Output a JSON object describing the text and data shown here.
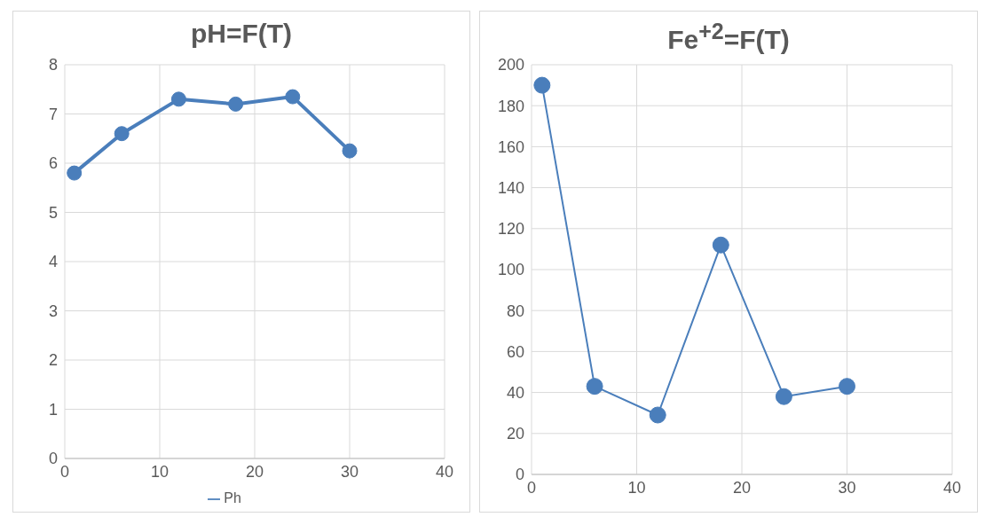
{
  "chart_data": [
    {
      "type": "line",
      "title": "pH=F(T)",
      "x": [
        1,
        6,
        12,
        18,
        24,
        30
      ],
      "series": [
        {
          "name": "Ph",
          "color": "#4a7ebb",
          "values": [
            5.8,
            6.6,
            7.3,
            7.2,
            7.35,
            6.25
          ]
        }
      ],
      "xlim": [
        0,
        40
      ],
      "xticks": [
        0,
        10,
        20,
        30,
        40
      ],
      "ylim": [
        0,
        8
      ],
      "yticks": [
        0,
        1,
        2,
        3,
        4,
        5,
        6,
        7,
        8
      ],
      "grid": true,
      "legend": "bottom",
      "marker": "circle",
      "line_style": "solid"
    },
    {
      "type": "line",
      "title": "Fe$^{+2}$=F(T)",
      "x": [
        1,
        6,
        12,
        18,
        24,
        30
      ],
      "series": [
        {
          "color": "#4a7ebb",
          "values": [
            190,
            43,
            29,
            112,
            38,
            43
          ]
        }
      ],
      "xlim": [
        0,
        40
      ],
      "xticks": [
        0,
        10,
        20,
        30,
        40
      ],
      "ylim": [
        0,
        200
      ],
      "yticks": [
        0,
        20,
        40,
        60,
        80,
        100,
        120,
        140,
        160,
        180,
        200
      ],
      "grid": true,
      "legend": false,
      "marker": "circle",
      "line_style": "solid"
    }
  ]
}
